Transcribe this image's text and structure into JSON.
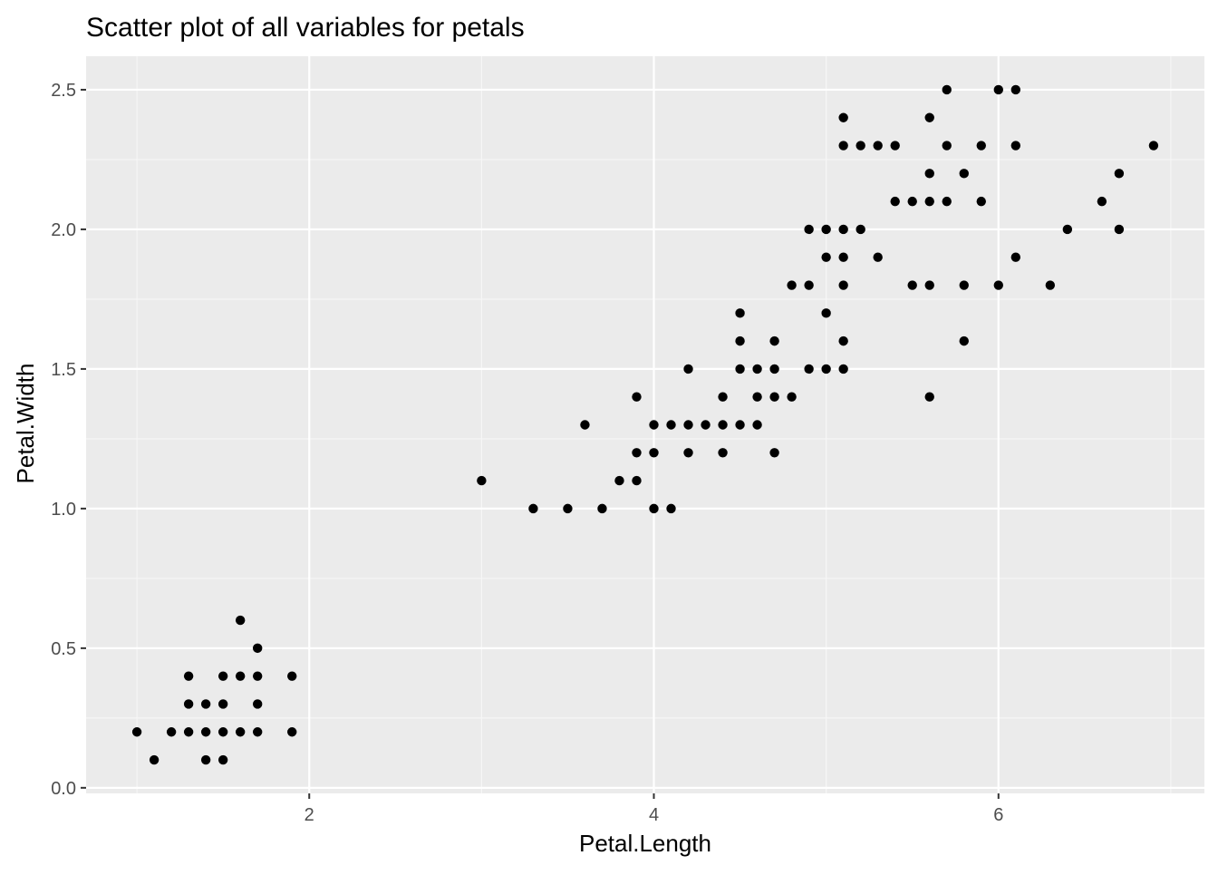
{
  "chart_data": {
    "type": "scatter",
    "title": "Scatter plot of all variables for petals",
    "xlabel": "Petal.Length",
    "ylabel": "Petal.Width",
    "xlim": [
      0.705,
      7.195
    ],
    "ylim": [
      -0.02,
      2.62
    ],
    "x_ticks": [
      2,
      4,
      6
    ],
    "x_tick_labels": [
      "2",
      "4",
      "6"
    ],
    "x_minor_ticks": [
      1,
      3,
      5,
      7
    ],
    "y_ticks": [
      0.0,
      0.5,
      1.0,
      1.5,
      2.0,
      2.5
    ],
    "y_tick_labels": [
      "0.0",
      "0.5",
      "1.0",
      "1.5",
      "2.0",
      "2.5"
    ],
    "y_minor_ticks": [
      0.25,
      0.75,
      1.25,
      1.75,
      2.25
    ],
    "grid": true,
    "colors": {
      "panel_background": "#ebebeb",
      "grid_major": "#ffffff",
      "grid_minor": "#f7f7f7",
      "point": "#000000"
    },
    "points": [
      {
        "x": 1.0,
        "y": 0.2
      },
      {
        "x": 1.1,
        "y": 0.1
      },
      {
        "x": 1.2,
        "y": 0.2
      },
      {
        "x": 1.3,
        "y": 0.2
      },
      {
        "x": 1.3,
        "y": 0.3
      },
      {
        "x": 1.3,
        "y": 0.4
      },
      {
        "x": 1.4,
        "y": 0.1
      },
      {
        "x": 1.4,
        "y": 0.2
      },
      {
        "x": 1.4,
        "y": 0.3
      },
      {
        "x": 1.5,
        "y": 0.1
      },
      {
        "x": 1.5,
        "y": 0.2
      },
      {
        "x": 1.5,
        "y": 0.3
      },
      {
        "x": 1.5,
        "y": 0.4
      },
      {
        "x": 1.6,
        "y": 0.2
      },
      {
        "x": 1.6,
        "y": 0.4
      },
      {
        "x": 1.6,
        "y": 0.6
      },
      {
        "x": 1.7,
        "y": 0.2
      },
      {
        "x": 1.7,
        "y": 0.3
      },
      {
        "x": 1.7,
        "y": 0.4
      },
      {
        "x": 1.7,
        "y": 0.5
      },
      {
        "x": 1.9,
        "y": 0.2
      },
      {
        "x": 1.9,
        "y": 0.4
      },
      {
        "x": 3.0,
        "y": 1.1
      },
      {
        "x": 3.3,
        "y": 1.0
      },
      {
        "x": 3.5,
        "y": 1.0
      },
      {
        "x": 3.6,
        "y": 1.3
      },
      {
        "x": 3.7,
        "y": 1.0
      },
      {
        "x": 3.8,
        "y": 1.1
      },
      {
        "x": 3.9,
        "y": 1.1
      },
      {
        "x": 3.9,
        "y": 1.2
      },
      {
        "x": 3.9,
        "y": 1.4
      },
      {
        "x": 4.0,
        "y": 1.0
      },
      {
        "x": 4.0,
        "y": 1.2
      },
      {
        "x": 4.0,
        "y": 1.3
      },
      {
        "x": 4.1,
        "y": 1.0
      },
      {
        "x": 4.1,
        "y": 1.3
      },
      {
        "x": 4.2,
        "y": 1.2
      },
      {
        "x": 4.2,
        "y": 1.3
      },
      {
        "x": 4.2,
        "y": 1.5
      },
      {
        "x": 4.3,
        "y": 1.3
      },
      {
        "x": 4.4,
        "y": 1.2
      },
      {
        "x": 4.4,
        "y": 1.3
      },
      {
        "x": 4.4,
        "y": 1.4
      },
      {
        "x": 4.5,
        "y": 1.3
      },
      {
        "x": 4.5,
        "y": 1.5
      },
      {
        "x": 4.5,
        "y": 1.6
      },
      {
        "x": 4.5,
        "y": 1.7
      },
      {
        "x": 4.6,
        "y": 1.3
      },
      {
        "x": 4.6,
        "y": 1.4
      },
      {
        "x": 4.6,
        "y": 1.5
      },
      {
        "x": 4.7,
        "y": 1.2
      },
      {
        "x": 4.7,
        "y": 1.4
      },
      {
        "x": 4.7,
        "y": 1.5
      },
      {
        "x": 4.7,
        "y": 1.6
      },
      {
        "x": 4.8,
        "y": 1.4
      },
      {
        "x": 4.8,
        "y": 1.8
      },
      {
        "x": 4.9,
        "y": 1.5
      },
      {
        "x": 4.9,
        "y": 1.8
      },
      {
        "x": 4.9,
        "y": 2.0
      },
      {
        "x": 5.0,
        "y": 1.5
      },
      {
        "x": 5.0,
        "y": 1.7
      },
      {
        "x": 5.0,
        "y": 1.9
      },
      {
        "x": 5.0,
        "y": 2.0
      },
      {
        "x": 5.1,
        "y": 1.5
      },
      {
        "x": 5.1,
        "y": 1.6
      },
      {
        "x": 5.1,
        "y": 1.8
      },
      {
        "x": 5.1,
        "y": 1.9
      },
      {
        "x": 5.1,
        "y": 2.0
      },
      {
        "x": 5.1,
        "y": 2.3
      },
      {
        "x": 5.1,
        "y": 2.4
      },
      {
        "x": 5.2,
        "y": 2.0
      },
      {
        "x": 5.2,
        "y": 2.3
      },
      {
        "x": 5.3,
        "y": 1.9
      },
      {
        "x": 5.3,
        "y": 2.3
      },
      {
        "x": 5.4,
        "y": 2.1
      },
      {
        "x": 5.4,
        "y": 2.3
      },
      {
        "x": 5.5,
        "y": 1.8
      },
      {
        "x": 5.5,
        "y": 2.1
      },
      {
        "x": 5.6,
        "y": 1.4
      },
      {
        "x": 5.6,
        "y": 1.8
      },
      {
        "x": 5.6,
        "y": 2.1
      },
      {
        "x": 5.6,
        "y": 2.2
      },
      {
        "x": 5.6,
        "y": 2.4
      },
      {
        "x": 5.7,
        "y": 2.1
      },
      {
        "x": 5.7,
        "y": 2.3
      },
      {
        "x": 5.7,
        "y": 2.5
      },
      {
        "x": 5.8,
        "y": 1.6
      },
      {
        "x": 5.8,
        "y": 1.8
      },
      {
        "x": 5.8,
        "y": 2.2
      },
      {
        "x": 5.9,
        "y": 2.1
      },
      {
        "x": 5.9,
        "y": 2.3
      },
      {
        "x": 6.0,
        "y": 1.8
      },
      {
        "x": 6.0,
        "y": 2.5
      },
      {
        "x": 6.1,
        "y": 1.9
      },
      {
        "x": 6.1,
        "y": 2.3
      },
      {
        "x": 6.1,
        "y": 2.5
      },
      {
        "x": 6.3,
        "y": 1.8
      },
      {
        "x": 6.4,
        "y": 2.0
      },
      {
        "x": 6.6,
        "y": 2.1
      },
      {
        "x": 6.7,
        "y": 2.0
      },
      {
        "x": 6.7,
        "y": 2.2
      },
      {
        "x": 6.9,
        "y": 2.3
      }
    ]
  }
}
